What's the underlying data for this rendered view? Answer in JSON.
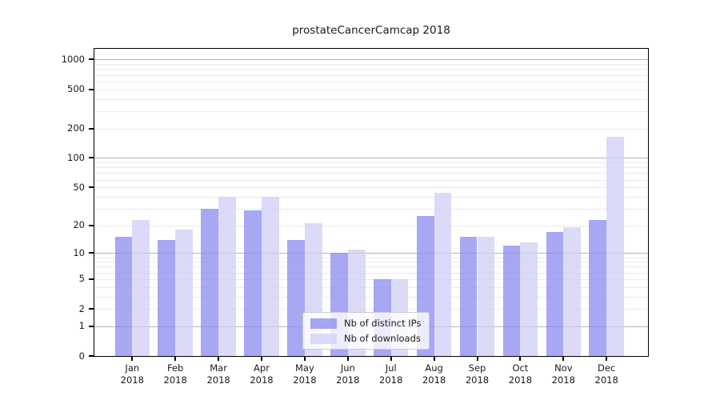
{
  "title": "prostateCancerCamcap 2018",
  "chart_data": {
    "type": "bar",
    "title": "prostateCancerCamcap 2018",
    "y_scale": "log10(1+y)",
    "grid": true,
    "categories": [
      "Jan",
      "Feb",
      "Mar",
      "Apr",
      "May",
      "Jun",
      "Jul",
      "Aug",
      "Sep",
      "Oct",
      "Nov",
      "Dec"
    ],
    "year_label": "2018",
    "series": [
      {
        "name": "Nb of distinct IPs",
        "color": "#8989f0",
        "alpha": 0.75,
        "values": [
          15,
          14,
          30,
          29,
          14,
          10,
          5,
          25,
          15,
          12,
          17,
          23
        ]
      },
      {
        "name": "Nb of downloads",
        "color": "#cfcff5",
        "alpha": 0.75,
        "values": [
          23,
          18,
          40,
          40,
          21,
          11,
          5,
          44,
          15,
          13,
          19,
          165
        ]
      }
    ],
    "y_ticks": [
      0,
      1,
      2,
      5,
      10,
      20,
      50,
      100,
      200,
      500,
      1000
    ],
    "y_minor_gridlines": [
      2,
      3,
      4,
      5,
      6,
      7,
      8,
      9,
      20,
      30,
      40,
      50,
      60,
      70,
      80,
      90,
      200,
      300,
      400,
      500,
      600,
      700,
      800,
      900
    ],
    "y_major_gridlines": [
      1,
      10,
      100,
      1000
    ],
    "ylim": [
      0,
      1290
    ],
    "legend_position": "lower-center",
    "colors": {
      "major_grid": "#b5b5b5",
      "minor_grid": "#ebebeb",
      "axis": "#000000",
      "text": "#1a1a1a"
    }
  }
}
